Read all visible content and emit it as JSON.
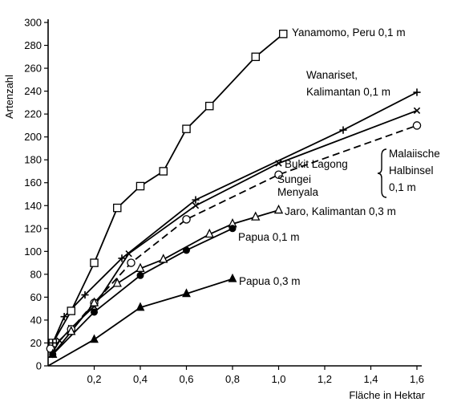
{
  "chart_data": {
    "type": "line",
    "xlabel": "Fläche in Hektar",
    "ylabel": "Artenzahl",
    "xlim": [
      0,
      1.6
    ],
    "ylim": [
      0,
      300
    ],
    "x_ticks": [
      0.2,
      0.4,
      0.6,
      0.8,
      1.0,
      1.2,
      1.4,
      1.6
    ],
    "x_tick_labels": [
      "0,2",
      "0,4",
      "0,6",
      "0,8",
      "1,0",
      "1,2",
      "1,4",
      "1,6"
    ],
    "y_ticks": [
      0,
      20,
      40,
      60,
      80,
      100,
      120,
      140,
      160,
      180,
      200,
      220,
      240,
      260,
      280,
      300
    ],
    "y_tick_labels": [
      "0",
      "20",
      "40",
      "60",
      "80",
      "100",
      "120",
      "140",
      "160",
      "180",
      "200",
      "220",
      "240",
      "260",
      "280",
      "300"
    ],
    "grid": false,
    "series": [
      {
        "name": "Yanamomo, Peru 0,1 m",
        "label_lines": [
          "Yanamomo, Peru 0,1 m"
        ],
        "marker": "square",
        "dash": "solid",
        "x": [
          0.02,
          0.1,
          0.2,
          0.3,
          0.4,
          0.5,
          0.6,
          0.7,
          0.9,
          1.02
        ],
        "y": [
          20,
          48,
          90,
          138,
          157,
          170,
          207,
          227,
          270,
          290
        ]
      },
      {
        "name": "Wanariset, Kalimantan 0,1 m",
        "label_lines": [
          "Wanariset,",
          "Kalimantan 0,1 m"
        ],
        "marker": "plus",
        "dash": "solid",
        "x": [
          0.02,
          0.07,
          0.16,
          0.32,
          0.64,
          1.28,
          1.6
        ],
        "y": [
          20,
          43,
          62,
          94,
          145,
          206,
          239
        ]
      },
      {
        "name": "Bukit Lagong",
        "label_lines": [
          "Bukit Lagong"
        ],
        "marker": "cross",
        "dash": "solid",
        "x": [
          0.02,
          0.05,
          0.1,
          0.2,
          0.35,
          0.64,
          1.0,
          1.6
        ],
        "y": [
          12,
          22,
          33,
          52,
          98,
          140,
          177,
          223
        ]
      },
      {
        "name": "Sungei Menyala",
        "label_lines": [
          "Sungei",
          "Menyala"
        ],
        "marker": "circle",
        "dash": "dashed",
        "x": [
          0.01,
          0.1,
          0.2,
          0.36,
          0.6,
          1.0,
          1.6
        ],
        "y": [
          15,
          32,
          55,
          90,
          128,
          167,
          210
        ]
      },
      {
        "name": "Jaro, Kalimantan 0,3 m",
        "label_lines": [
          "Jaro, Kalimantan 0,3 m"
        ],
        "marker": "triangle-hollow",
        "dash": "solid",
        "x": [
          0.02,
          0.1,
          0.2,
          0.3,
          0.4,
          0.5,
          0.7,
          0.8,
          0.9,
          1.0
        ],
        "y": [
          10,
          30,
          55,
          72,
          85,
          93,
          115,
          124,
          130,
          136
        ]
      },
      {
        "name": "Papua 0,1 m",
        "label_lines": [
          "Papua 0,1 m"
        ],
        "marker": "circle-solid",
        "dash": "solid",
        "x": [
          0.02,
          0.2,
          0.4,
          0.6,
          0.8
        ],
        "y": [
          10,
          47,
          79,
          101,
          120
        ]
      },
      {
        "name": "Papua 0,3 m",
        "label_lines": [
          "Papua 0,3 m"
        ],
        "marker": "triangle-solid",
        "dash": "solid",
        "x": [
          0.0,
          0.2,
          0.4,
          0.6,
          0.8
        ],
        "y": [
          0,
          23,
          51,
          63,
          76
        ]
      }
    ],
    "group_annotation": {
      "label_lines": [
        "Malaiische",
        "Halbinsel",
        "0,1 m"
      ],
      "groups_series": [
        "Bukit Lagong",
        "Sungei Menyala"
      ]
    }
  }
}
